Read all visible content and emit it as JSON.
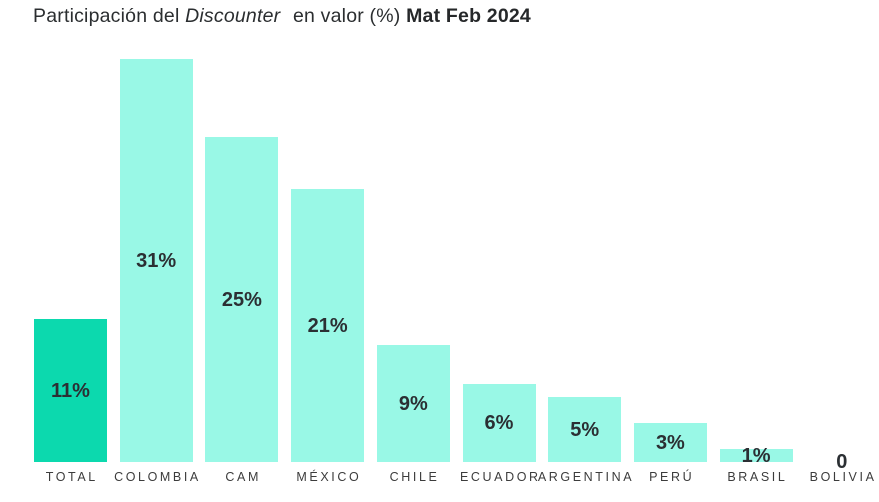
{
  "title": {
    "prefix": "Participación del",
    "italic": "Discounter",
    "middle": "en valor (%)",
    "bold": "Mat Feb 2024"
  },
  "colors": {
    "highlight_bar": "#0cd9ae",
    "bar": "#99f8e6",
    "value_text": "#2b2f33",
    "category_text": "#3c3c3c",
    "background": "#ffffff"
  },
  "chart_data": {
    "type": "bar",
    "title": "Participación del Discounter en valor (%) Mat Feb 2024",
    "categories": [
      "TOTAL",
      "COLOMBIA",
      "CAM",
      "MÉXICO",
      "CHILE",
      "ECUADOR",
      "ARGENTINA",
      "PERÚ",
      "BRASIL",
      "BOLIVIA"
    ],
    "values": [
      11,
      31,
      25,
      21,
      9,
      6,
      5,
      3,
      1,
      0
    ],
    "value_labels": [
      "11%",
      "31%",
      "25%",
      "21%",
      "9%",
      "6%",
      "5%",
      "3%",
      "1%",
      "0"
    ],
    "highlight_index": 0,
    "unit": "%",
    "xlabel": "",
    "ylabel": "",
    "ylim": [
      0,
      31
    ],
    "grid": false,
    "legend": false,
    "axes_visible": false,
    "value_label_position": "centered-inside-bar"
  }
}
